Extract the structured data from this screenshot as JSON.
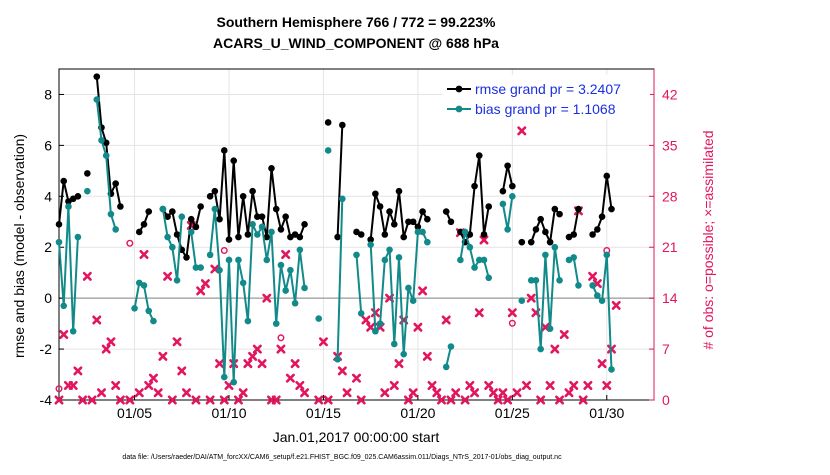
{
  "chart_data": {
    "type": "line",
    "title": "Southern Hemisphere 766 / 772 = 99.223%",
    "subtitle": "ACARS_U_WIND_COMPONENT @ 688 hPa",
    "xlabel": "Jan.01,2017 00:00:00 start",
    "ylabel": "rmse and bias (model - observation)",
    "ylabel_right": "# of obs: o=possible; ×=assimilated",
    "footnote": "data file: /Users/raeder/DAI/ATM_forcXX/CAM6_setup/f.e21.FHIST_BGC.f09_025.CAM6assim.011/Diags_NTrS_2017-01/obs_diag_output.nc",
    "xlim": [
      1,
      32.5
    ],
    "ylim": [
      -4,
      9
    ],
    "ylim_right": [
      0,
      45.5
    ],
    "xticks": [
      5,
      10,
      15,
      20,
      25,
      30
    ],
    "xtick_labels": [
      "01/05",
      "01/10",
      "01/15",
      "01/20",
      "01/25",
      "01/30"
    ],
    "yticks": [
      -4,
      -2,
      0,
      2,
      4,
      6,
      8
    ],
    "yticks_right": [
      0,
      7,
      14,
      21,
      28,
      35,
      42
    ],
    "grid": true,
    "zero_line": true,
    "legend_position": "top-right",
    "series": [
      {
        "name": "rmse grand pr = 3.2407",
        "color": "#000000",
        "marker": "dot",
        "points": [
          [
            1.0,
            2.9
          ],
          [
            1.25,
            4.6
          ],
          [
            1.5,
            3.8
          ],
          [
            1.75,
            3.9
          ],
          [
            2.0,
            4.0
          ],
          [
            2.5,
            4.9
          ],
          [
            3.0,
            8.7
          ],
          [
            3.25,
            6.7
          ],
          [
            3.5,
            6.1
          ],
          [
            3.75,
            4.1
          ],
          [
            4.0,
            4.5
          ],
          [
            4.25,
            3.6
          ],
          [
            5.25,
            2.6
          ],
          [
            5.5,
            2.9
          ],
          [
            5.75,
            3.4
          ],
          [
            6.5,
            3.5
          ],
          [
            6.75,
            3.2
          ],
          [
            7.0,
            3.4
          ],
          [
            7.25,
            2.5
          ],
          [
            7.5,
            1.9
          ],
          [
            7.75,
            1.6
          ],
          [
            8.0,
            3.1
          ],
          [
            8.25,
            2.8
          ],
          [
            8.5,
            3.6
          ],
          [
            9.0,
            4.0
          ],
          [
            9.25,
            4.2
          ],
          [
            9.5,
            3.1
          ],
          [
            9.75,
            5.8
          ],
          [
            10.0,
            2.3
          ],
          [
            10.25,
            5.4
          ],
          [
            10.5,
            2.4
          ],
          [
            10.75,
            4.0
          ],
          [
            11.0,
            2.5
          ],
          [
            11.25,
            4.2
          ],
          [
            11.5,
            3.2
          ],
          [
            11.75,
            3.2
          ],
          [
            12.0,
            2.4
          ],
          [
            12.25,
            5.1
          ],
          [
            12.5,
            3.5
          ],
          [
            12.75,
            2.7
          ],
          [
            13.0,
            3.2
          ],
          [
            13.25,
            2.4
          ],
          [
            13.5,
            2.5
          ],
          [
            13.75,
            2.4
          ],
          [
            14.0,
            2.9
          ],
          [
            15.25,
            6.9
          ],
          [
            15.75,
            2.4
          ],
          [
            16.0,
            6.8
          ],
          [
            16.75,
            2.6
          ],
          [
            17.0,
            2.5
          ],
          [
            17.5,
            2.3
          ],
          [
            17.75,
            4.1
          ],
          [
            18.0,
            3.6
          ],
          [
            18.25,
            2.5
          ],
          [
            18.5,
            3.4
          ],
          [
            18.75,
            2.9
          ],
          [
            19.0,
            4.2
          ],
          [
            19.25,
            2.4
          ],
          [
            19.5,
            3.0
          ],
          [
            19.75,
            3.0
          ],
          [
            20.0,
            2.8
          ],
          [
            20.25,
            3.4
          ],
          [
            20.5,
            3.1
          ],
          [
            21.5,
            3.4
          ],
          [
            21.75,
            3.0
          ],
          [
            22.25,
            2.6
          ],
          [
            22.5,
            2.2
          ],
          [
            22.75,
            2.5
          ],
          [
            23.0,
            4.4
          ],
          [
            23.25,
            5.6
          ],
          [
            23.5,
            2.5
          ],
          [
            23.75,
            3.6
          ],
          [
            24.5,
            4.2
          ],
          [
            24.75,
            5.2
          ],
          [
            25.0,
            4.4
          ],
          [
            25.5,
            2.2
          ],
          [
            26.0,
            2.2
          ],
          [
            26.25,
            2.7
          ],
          [
            26.5,
            3.1
          ],
          [
            26.75,
            2.6
          ],
          [
            27.0,
            2.2
          ],
          [
            27.25,
            3.5
          ],
          [
            27.5,
            3.3
          ],
          [
            28.0,
            2.4
          ],
          [
            28.25,
            2.5
          ],
          [
            28.5,
            3.5
          ],
          [
            29.25,
            2.5
          ],
          [
            29.5,
            2.7
          ],
          [
            29.75,
            3.2
          ],
          [
            30.0,
            4.8
          ],
          [
            30.25,
            3.5
          ]
        ]
      },
      {
        "name": "bias grand pr = 1.1068",
        "color": "#138a8a",
        "marker": "dot",
        "points": [
          [
            1.0,
            2.2
          ],
          [
            1.25,
            -0.3
          ],
          [
            1.5,
            3.6
          ],
          [
            1.75,
            -1.3
          ],
          [
            2.0,
            2.4
          ],
          [
            2.5,
            4.2
          ],
          [
            3.0,
            7.8
          ],
          [
            3.25,
            6.2
          ],
          [
            3.5,
            5.6
          ],
          [
            3.75,
            3.3
          ],
          [
            4.0,
            2.7
          ],
          [
            5.0,
            -0.4
          ],
          [
            5.25,
            0.6
          ],
          [
            5.5,
            0.5
          ],
          [
            5.75,
            -0.5
          ],
          [
            6.0,
            -0.9
          ],
          [
            6.5,
            3.5
          ],
          [
            6.75,
            2.4
          ],
          [
            7.0,
            2.0
          ],
          [
            7.25,
            0.7
          ],
          [
            7.5,
            3.2
          ],
          [
            8.0,
            2.6
          ],
          [
            8.25,
            1.2
          ],
          [
            8.5,
            1.2
          ],
          [
            9.0,
            1.7
          ],
          [
            9.25,
            3.5
          ],
          [
            9.5,
            1.1
          ],
          [
            9.75,
            -3.1
          ],
          [
            10.0,
            1.5
          ],
          [
            10.25,
            -3.3
          ],
          [
            10.5,
            1.5
          ],
          [
            10.75,
            0.6
          ],
          [
            11.0,
            -0.9
          ],
          [
            11.25,
            2.9
          ],
          [
            11.5,
            2.5
          ],
          [
            11.75,
            2.8
          ],
          [
            12.0,
            1.5
          ],
          [
            12.25,
            2.6
          ],
          [
            12.5,
            -1.0
          ],
          [
            12.75,
            1.3
          ],
          [
            13.0,
            0.3
          ],
          [
            13.25,
            1.1
          ],
          [
            13.5,
            -0.2
          ],
          [
            13.75,
            1.9
          ],
          [
            14.0,
            0.4
          ],
          [
            14.75,
            -0.8
          ],
          [
            15.25,
            5.8
          ],
          [
            15.75,
            -2.4
          ],
          [
            16.0,
            3.9
          ],
          [
            16.75,
            1.7
          ],
          [
            17.0,
            -0.6
          ],
          [
            17.5,
            2.1
          ],
          [
            17.75,
            -1.3
          ],
          [
            18.0,
            -1.0
          ],
          [
            18.25,
            1.5
          ],
          [
            18.5,
            1.9
          ],
          [
            18.75,
            -1.8
          ],
          [
            19.0,
            1.6
          ],
          [
            19.25,
            -2.2
          ],
          [
            19.5,
            0.4
          ],
          [
            19.75,
            -0.1
          ],
          [
            20.0,
            2.6
          ],
          [
            20.25,
            2.6
          ],
          [
            20.5,
            2.2
          ],
          [
            21.5,
            -2.7
          ],
          [
            21.75,
            -1.9
          ],
          [
            22.25,
            1.5
          ],
          [
            22.5,
            2.6
          ],
          [
            22.75,
            2.0
          ],
          [
            23.0,
            1.2
          ],
          [
            23.25,
            1.5
          ],
          [
            23.5,
            1.5
          ],
          [
            23.75,
            0.8
          ],
          [
            24.5,
            3.7
          ],
          [
            24.75,
            2.7
          ],
          [
            25.0,
            4.0
          ],
          [
            25.5,
            -0.1
          ],
          [
            26.0,
            0.7
          ],
          [
            26.25,
            0.7
          ],
          [
            26.5,
            -2.0
          ],
          [
            26.75,
            1.7
          ],
          [
            27.0,
            -1.2
          ],
          [
            27.25,
            2.0
          ],
          [
            27.5,
            0.7
          ],
          [
            28.0,
            1.5
          ],
          [
            28.25,
            1.6
          ],
          [
            28.5,
            0.5
          ],
          [
            29.25,
            0.5
          ],
          [
            29.5,
            0.1
          ],
          [
            29.75,
            -0.1
          ],
          [
            30.0,
            1.7
          ],
          [
            30.25,
            -2.8
          ]
        ]
      },
      {
        "name": "assimilated",
        "color": "#e2155f",
        "marker": "x",
        "axis": "right",
        "points": [
          [
            1.0,
            0
          ],
          [
            1.25,
            9
          ],
          [
            1.5,
            2
          ],
          [
            1.75,
            2
          ],
          [
            2.0,
            4
          ],
          [
            2.25,
            0
          ],
          [
            2.5,
            17
          ],
          [
            2.75,
            0
          ],
          [
            3.0,
            11
          ],
          [
            3.25,
            1
          ],
          [
            3.5,
            7
          ],
          [
            3.75,
            8
          ],
          [
            4.0,
            2
          ],
          [
            4.25,
            0
          ],
          [
            4.75,
            0
          ],
          [
            5.25,
            1
          ],
          [
            5.5,
            20
          ],
          [
            5.75,
            2
          ],
          [
            6.0,
            3
          ],
          [
            6.25,
            1
          ],
          [
            6.5,
            6
          ],
          [
            6.75,
            17
          ],
          [
            7.0,
            0
          ],
          [
            7.25,
            8
          ],
          [
            7.5,
            4
          ],
          [
            7.75,
            1
          ],
          [
            8.0,
            24
          ],
          [
            8.25,
            0
          ],
          [
            8.5,
            15
          ],
          [
            8.75,
            16
          ],
          [
            9.0,
            0
          ],
          [
            9.25,
            18
          ],
          [
            9.5,
            5
          ],
          [
            9.75,
            0
          ],
          [
            10.0,
            2
          ],
          [
            10.25,
            5
          ],
          [
            10.5,
            0
          ],
          [
            10.75,
            1
          ],
          [
            11.0,
            5
          ],
          [
            11.25,
            6
          ],
          [
            11.5,
            7
          ],
          [
            11.75,
            5
          ],
          [
            12.0,
            14
          ],
          [
            12.25,
            0
          ],
          [
            12.5,
            0
          ],
          [
            12.75,
            7
          ],
          [
            13.0,
            20
          ],
          [
            13.25,
            3
          ],
          [
            13.5,
            5
          ],
          [
            13.75,
            2
          ],
          [
            14.0,
            1
          ],
          [
            14.75,
            0
          ],
          [
            15.0,
            8
          ],
          [
            15.25,
            0
          ],
          [
            15.75,
            6
          ],
          [
            16.0,
            4
          ],
          [
            16.25,
            1
          ],
          [
            16.75,
            3
          ],
          [
            17.0,
            0
          ],
          [
            17.25,
            11
          ],
          [
            17.5,
            10
          ],
          [
            17.75,
            12
          ],
          [
            18.0,
            10
          ],
          [
            18.25,
            1
          ],
          [
            18.5,
            14
          ],
          [
            18.75,
            2
          ],
          [
            19.0,
            5
          ],
          [
            19.25,
            11
          ],
          [
            19.5,
            0
          ],
          [
            19.75,
            1
          ],
          [
            20.0,
            10
          ],
          [
            20.25,
            15
          ],
          [
            20.5,
            6
          ],
          [
            20.75,
            2
          ],
          [
            21.0,
            1
          ],
          [
            21.25,
            0
          ],
          [
            21.5,
            11
          ],
          [
            21.75,
            0
          ],
          [
            22.0,
            1
          ],
          [
            22.25,
            23
          ],
          [
            22.5,
            0
          ],
          [
            22.75,
            2
          ],
          [
            23.0,
            1
          ],
          [
            23.25,
            12
          ],
          [
            23.5,
            22
          ],
          [
            23.75,
            2
          ],
          [
            24.0,
            1
          ],
          [
            24.25,
            0
          ],
          [
            24.5,
            1
          ],
          [
            24.75,
            0
          ],
          [
            25.0,
            12
          ],
          [
            25.25,
            1
          ],
          [
            25.5,
            37
          ],
          [
            25.75,
            2
          ],
          [
            26.0,
            14
          ],
          [
            26.25,
            12
          ],
          [
            26.5,
            0
          ],
          [
            26.75,
            10
          ],
          [
            27.0,
            2
          ],
          [
            27.25,
            7
          ],
          [
            27.5,
            0
          ],
          [
            27.75,
            9
          ],
          [
            28.0,
            1
          ],
          [
            28.25,
            2
          ],
          [
            28.5,
            26
          ],
          [
            28.75,
            0
          ],
          [
            29.0,
            2
          ],
          [
            29.25,
            17
          ],
          [
            29.5,
            16
          ],
          [
            29.75,
            5
          ],
          [
            30.0,
            2
          ],
          [
            30.25,
            7
          ],
          [
            30.5,
            13
          ]
        ]
      },
      {
        "name": "possible",
        "color": "#e2155f",
        "marker": "o",
        "axis": "right",
        "points": [
          [
            1.0,
            1
          ],
          [
            4.75,
            21
          ],
          [
            9.75,
            20
          ],
          [
            12.75,
            8
          ],
          [
            25.0,
            10
          ],
          [
            30.0,
            20
          ]
        ]
      }
    ]
  }
}
